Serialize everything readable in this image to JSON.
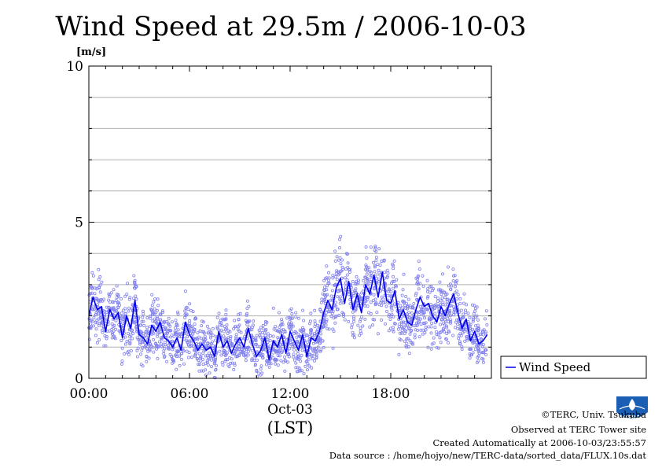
{
  "chart_data": {
    "type": "line",
    "title": "Wind Speed at 29.5m / 2006-10-03",
    "ylabel": "[m/s]",
    "xlabel": "(LST)",
    "date_label": "Oct-03",
    "ylim": [
      0,
      10
    ],
    "xlim": [
      0,
      24
    ],
    "y_ticks": [
      0,
      5,
      10
    ],
    "x_ticks": [
      {
        "value": 0,
        "label": "00:00"
      },
      {
        "value": 6,
        "label": "06:00"
      },
      {
        "value": 12,
        "label": "12:00"
      },
      {
        "value": 18,
        "label": "18:00"
      }
    ],
    "grid": true,
    "legend": {
      "position": "right",
      "entries": [
        "Wind Speed"
      ]
    },
    "series": [
      {
        "name": "Wind Speed",
        "color": "#0000ee",
        "scatter_color": "#8080ee",
        "x": [
          0.0,
          0.25,
          0.5,
          0.75,
          1.0,
          1.25,
          1.5,
          1.75,
          2.0,
          2.25,
          2.5,
          2.75,
          3.0,
          3.25,
          3.5,
          3.75,
          4.0,
          4.25,
          4.5,
          4.75,
          5.0,
          5.25,
          5.5,
          5.75,
          6.0,
          6.25,
          6.5,
          6.75,
          7.0,
          7.25,
          7.5,
          7.75,
          8.0,
          8.25,
          8.5,
          8.75,
          9.0,
          9.25,
          9.5,
          9.75,
          10.0,
          10.25,
          10.5,
          10.75,
          11.0,
          11.25,
          11.5,
          11.75,
          12.0,
          12.25,
          12.5,
          12.75,
          13.0,
          13.25,
          13.5,
          13.75,
          14.0,
          14.25,
          14.5,
          14.75,
          15.0,
          15.25,
          15.5,
          15.75,
          16.0,
          16.25,
          16.5,
          16.75,
          17.0,
          17.25,
          17.5,
          17.75,
          18.0,
          18.25,
          18.5,
          18.75,
          19.0,
          19.25,
          19.5,
          19.75,
          20.0,
          20.25,
          20.5,
          20.75,
          21.0,
          21.25,
          21.5,
          21.75,
          22.0,
          22.25,
          22.5,
          22.75,
          23.0,
          23.25,
          23.5,
          23.75
        ],
        "values": [
          2.0,
          2.6,
          2.2,
          2.3,
          1.5,
          2.2,
          1.9,
          2.1,
          1.3,
          2.0,
          1.6,
          2.5,
          1.4,
          1.3,
          1.1,
          1.7,
          1.5,
          1.8,
          1.3,
          1.2,
          1.0,
          1.3,
          0.9,
          1.8,
          1.4,
          1.2,
          0.9,
          1.1,
          0.9,
          1.0,
          0.7,
          1.5,
          1.0,
          1.2,
          0.8,
          1.1,
          1.3,
          1.0,
          1.6,
          1.1,
          0.7,
          0.9,
          1.3,
          0.6,
          1.2,
          1.0,
          1.4,
          0.8,
          1.5,
          1.2,
          0.9,
          1.4,
          0.7,
          1.3,
          1.2,
          1.5,
          2.1,
          2.5,
          2.2,
          2.9,
          3.2,
          2.4,
          3.1,
          2.2,
          2.7,
          2.1,
          3.0,
          2.7,
          3.3,
          2.6,
          3.4,
          2.5,
          2.4,
          2.8,
          1.9,
          2.2,
          1.8,
          1.7,
          2.2,
          2.6,
          2.3,
          2.4,
          2.0,
          1.8,
          2.3,
          2.0,
          2.4,
          2.7,
          2.1,
          1.6,
          1.9,
          1.2,
          1.5,
          1.1,
          1.2,
          1.4
        ]
      }
    ]
  },
  "credits": {
    "copyright": "©TERC, Univ. Tsukuba",
    "observed": "Observed at TERC Tower site",
    "created": "Created Automatically at 2006-10-03/23:55:57",
    "source": "Data source : /home/hojyo/new/TERC-data/sorted_data/FLUX.10s.dat"
  },
  "logo": {
    "text": "TERC",
    "icon": "terc-logo-icon"
  }
}
